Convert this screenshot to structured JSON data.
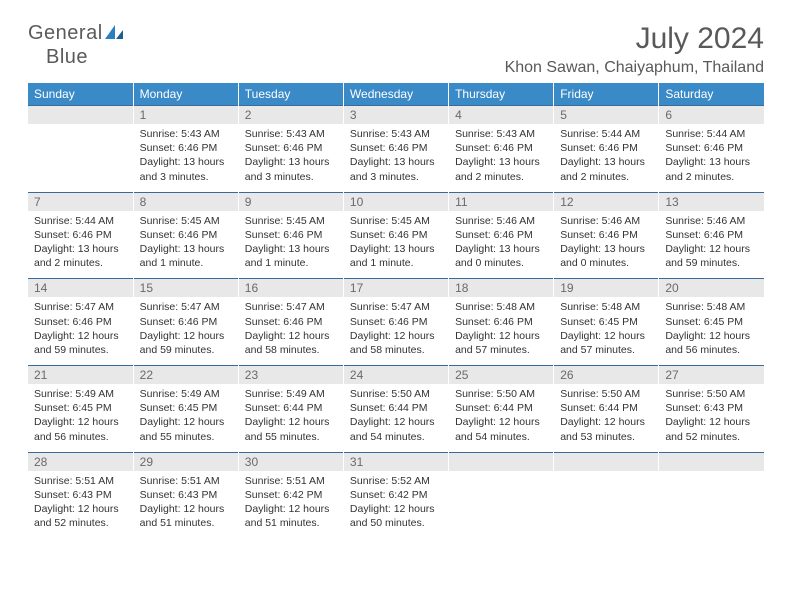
{
  "logo": {
    "text1": "General",
    "text2": "Blue",
    "color_gray": "#5a5a5a",
    "color_blue": "#2a7fbf"
  },
  "title": "July 2024",
  "location": "Khon Sawan, Chaiyaphum, Thailand",
  "colors": {
    "header_bg": "#3a8ac8",
    "header_text": "#ffffff",
    "daynum_bg": "#e8e8e8",
    "daynum_text": "#6a6a6a",
    "daynum_border_top": "#3a6a9a",
    "body_text": "#333333",
    "page_bg": "#ffffff"
  },
  "day_headers": [
    "Sunday",
    "Monday",
    "Tuesday",
    "Wednesday",
    "Thursday",
    "Friday",
    "Saturday"
  ],
  "weeks": [
    [
      {
        "num": "",
        "lines": []
      },
      {
        "num": "1",
        "lines": [
          "Sunrise: 5:43 AM",
          "Sunset: 6:46 PM",
          "Daylight: 13 hours and 3 minutes."
        ]
      },
      {
        "num": "2",
        "lines": [
          "Sunrise: 5:43 AM",
          "Sunset: 6:46 PM",
          "Daylight: 13 hours and 3 minutes."
        ]
      },
      {
        "num": "3",
        "lines": [
          "Sunrise: 5:43 AM",
          "Sunset: 6:46 PM",
          "Daylight: 13 hours and 3 minutes."
        ]
      },
      {
        "num": "4",
        "lines": [
          "Sunrise: 5:43 AM",
          "Sunset: 6:46 PM",
          "Daylight: 13 hours and 2 minutes."
        ]
      },
      {
        "num": "5",
        "lines": [
          "Sunrise: 5:44 AM",
          "Sunset: 6:46 PM",
          "Daylight: 13 hours and 2 minutes."
        ]
      },
      {
        "num": "6",
        "lines": [
          "Sunrise: 5:44 AM",
          "Sunset: 6:46 PM",
          "Daylight: 13 hours and 2 minutes."
        ]
      }
    ],
    [
      {
        "num": "7",
        "lines": [
          "Sunrise: 5:44 AM",
          "Sunset: 6:46 PM",
          "Daylight: 13 hours and 2 minutes."
        ]
      },
      {
        "num": "8",
        "lines": [
          "Sunrise: 5:45 AM",
          "Sunset: 6:46 PM",
          "Daylight: 13 hours and 1 minute."
        ]
      },
      {
        "num": "9",
        "lines": [
          "Sunrise: 5:45 AM",
          "Sunset: 6:46 PM",
          "Daylight: 13 hours and 1 minute."
        ]
      },
      {
        "num": "10",
        "lines": [
          "Sunrise: 5:45 AM",
          "Sunset: 6:46 PM",
          "Daylight: 13 hours and 1 minute."
        ]
      },
      {
        "num": "11",
        "lines": [
          "Sunrise: 5:46 AM",
          "Sunset: 6:46 PM",
          "Daylight: 13 hours and 0 minutes."
        ]
      },
      {
        "num": "12",
        "lines": [
          "Sunrise: 5:46 AM",
          "Sunset: 6:46 PM",
          "Daylight: 13 hours and 0 minutes."
        ]
      },
      {
        "num": "13",
        "lines": [
          "Sunrise: 5:46 AM",
          "Sunset: 6:46 PM",
          "Daylight: 12 hours and 59 minutes."
        ]
      }
    ],
    [
      {
        "num": "14",
        "lines": [
          "Sunrise: 5:47 AM",
          "Sunset: 6:46 PM",
          "Daylight: 12 hours and 59 minutes."
        ]
      },
      {
        "num": "15",
        "lines": [
          "Sunrise: 5:47 AM",
          "Sunset: 6:46 PM",
          "Daylight: 12 hours and 59 minutes."
        ]
      },
      {
        "num": "16",
        "lines": [
          "Sunrise: 5:47 AM",
          "Sunset: 6:46 PM",
          "Daylight: 12 hours and 58 minutes."
        ]
      },
      {
        "num": "17",
        "lines": [
          "Sunrise: 5:47 AM",
          "Sunset: 6:46 PM",
          "Daylight: 12 hours and 58 minutes."
        ]
      },
      {
        "num": "18",
        "lines": [
          "Sunrise: 5:48 AM",
          "Sunset: 6:46 PM",
          "Daylight: 12 hours and 57 minutes."
        ]
      },
      {
        "num": "19",
        "lines": [
          "Sunrise: 5:48 AM",
          "Sunset: 6:45 PM",
          "Daylight: 12 hours and 57 minutes."
        ]
      },
      {
        "num": "20",
        "lines": [
          "Sunrise: 5:48 AM",
          "Sunset: 6:45 PM",
          "Daylight: 12 hours and 56 minutes."
        ]
      }
    ],
    [
      {
        "num": "21",
        "lines": [
          "Sunrise: 5:49 AM",
          "Sunset: 6:45 PM",
          "Daylight: 12 hours and 56 minutes."
        ]
      },
      {
        "num": "22",
        "lines": [
          "Sunrise: 5:49 AM",
          "Sunset: 6:45 PM",
          "Daylight: 12 hours and 55 minutes."
        ]
      },
      {
        "num": "23",
        "lines": [
          "Sunrise: 5:49 AM",
          "Sunset: 6:44 PM",
          "Daylight: 12 hours and 55 minutes."
        ]
      },
      {
        "num": "24",
        "lines": [
          "Sunrise: 5:50 AM",
          "Sunset: 6:44 PM",
          "Daylight: 12 hours and 54 minutes."
        ]
      },
      {
        "num": "25",
        "lines": [
          "Sunrise: 5:50 AM",
          "Sunset: 6:44 PM",
          "Daylight: 12 hours and 54 minutes."
        ]
      },
      {
        "num": "26",
        "lines": [
          "Sunrise: 5:50 AM",
          "Sunset: 6:44 PM",
          "Daylight: 12 hours and 53 minutes."
        ]
      },
      {
        "num": "27",
        "lines": [
          "Sunrise: 5:50 AM",
          "Sunset: 6:43 PM",
          "Daylight: 12 hours and 52 minutes."
        ]
      }
    ],
    [
      {
        "num": "28",
        "lines": [
          "Sunrise: 5:51 AM",
          "Sunset: 6:43 PM",
          "Daylight: 12 hours and 52 minutes."
        ]
      },
      {
        "num": "29",
        "lines": [
          "Sunrise: 5:51 AM",
          "Sunset: 6:43 PM",
          "Daylight: 12 hours and 51 minutes."
        ]
      },
      {
        "num": "30",
        "lines": [
          "Sunrise: 5:51 AM",
          "Sunset: 6:42 PM",
          "Daylight: 12 hours and 51 minutes."
        ]
      },
      {
        "num": "31",
        "lines": [
          "Sunrise: 5:52 AM",
          "Sunset: 6:42 PM",
          "Daylight: 12 hours and 50 minutes."
        ]
      },
      {
        "num": "",
        "lines": []
      },
      {
        "num": "",
        "lines": []
      },
      {
        "num": "",
        "lines": []
      }
    ]
  ]
}
